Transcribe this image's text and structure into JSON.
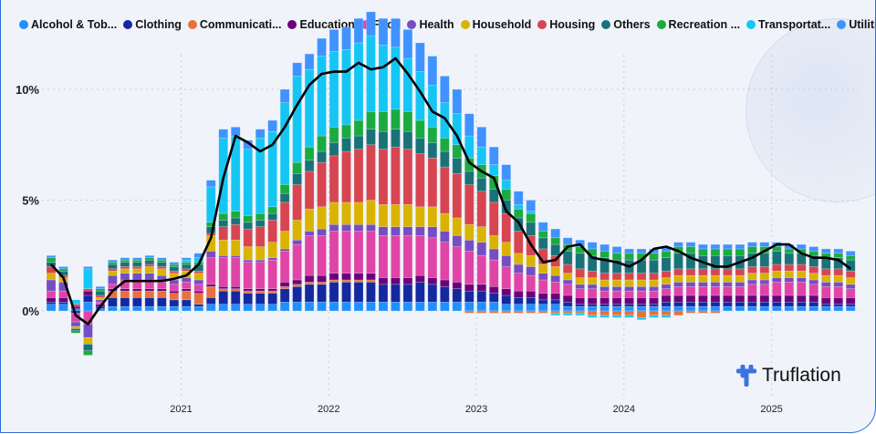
{
  "chart_data": {
    "type": "bar",
    "stacked": true,
    "title": "",
    "xlabel": "",
    "ylabel": "",
    "ylim": [
      -3,
      12
    ],
    "y_ticks": [
      "0%",
      "5%",
      "10%"
    ],
    "y_tick_values": [
      0,
      5,
      10
    ],
    "x_ticks": [
      "2021",
      "2022",
      "2023",
      "2024",
      "2025"
    ],
    "start_month": "2020-02",
    "n_months": 66,
    "legend_position": "top",
    "series": [
      {
        "name": "Alcohol & Tob...",
        "color": "#1E90FF",
        "values": [
          0.3,
          0.3,
          0.1,
          0.4,
          0.1,
          0.2,
          0.2,
          0.2,
          0.2,
          0.2,
          0.2,
          0.2,
          0.2,
          0.3,
          0.3,
          0.3,
          0.3,
          0.3,
          0.3,
          0.4,
          0.4,
          0.4,
          0.4,
          0.4,
          0.4,
          0.4,
          0.4,
          0.4,
          0.4,
          0.4,
          0.4,
          0.4,
          0.4,
          0.4,
          0.4,
          0.4,
          0.4,
          0.3,
          0.3,
          0.3,
          0.3,
          0.3,
          0.2,
          0.2,
          0.2,
          0.2,
          0.2,
          0.2,
          0.2,
          0.2,
          0.2,
          0.2,
          0.2,
          0.2,
          0.2,
          0.2,
          0.2,
          0.2,
          0.2,
          0.2,
          0.2,
          0.2,
          0.2,
          0.2,
          0.2,
          0.2
        ]
      },
      {
        "name": "Clothing",
        "color": "#1428A0",
        "values": [
          0.1,
          0.1,
          -0.1,
          0.3,
          0.1,
          0.4,
          0.4,
          0.4,
          0.4,
          0.4,
          0.3,
          0.3,
          0.1,
          0.3,
          0.6,
          0.6,
          0.5,
          0.5,
          0.5,
          0.6,
          0.7,
          0.8,
          0.8,
          0.9,
          0.9,
          0.9,
          0.9,
          0.8,
          0.8,
          0.8,
          0.9,
          0.8,
          0.7,
          0.6,
          0.5,
          0.5,
          0.4,
          0.4,
          0.3,
          0.3,
          0.2,
          0.2,
          0.2,
          0.1,
          0.1,
          0.1,
          0.1,
          0.1,
          0.1,
          0.1,
          0.2,
          0.2,
          0.2,
          0.2,
          0.2,
          0.2,
          0.2,
          0.2,
          0.2,
          0.2,
          0.2,
          0.2,
          0.2,
          0.1,
          0.1,
          0.1
        ]
      },
      {
        "name": "Communicati...",
        "color": "#E8703A",
        "values": [
          0,
          0,
          0,
          0,
          0,
          0.3,
          0.3,
          0.3,
          0.3,
          0.3,
          0.3,
          0.4,
          0.5,
          0.5,
          0.1,
          0.1,
          0.1,
          0.1,
          0.1,
          0.1,
          0.1,
          0.1,
          0.1,
          0.1,
          0.1,
          0.1,
          0.1,
          0,
          0,
          0,
          0,
          0,
          0,
          0,
          -0.1,
          -0.1,
          -0.1,
          -0.1,
          -0.1,
          -0.1,
          -0.1,
          -0.1,
          -0.1,
          -0.1,
          -0.2,
          -0.2,
          -0.2,
          -0.2,
          -0.3,
          -0.2,
          -0.2,
          -0.2,
          -0.1,
          -0.1,
          -0.1,
          0,
          0,
          0,
          0,
          0,
          0,
          0,
          0,
          0,
          0,
          0
        ]
      },
      {
        "name": "Education",
        "color": "#6B007B",
        "values": [
          0.2,
          0.2,
          0.1,
          0.2,
          0.1,
          0.1,
          0.1,
          0.1,
          0.1,
          0.1,
          0.1,
          0.1,
          0.1,
          0.1,
          0.1,
          0.1,
          0.1,
          0.1,
          0.1,
          0.2,
          0.2,
          0.3,
          0.3,
          0.3,
          0.3,
          0.3,
          0.3,
          0.3,
          0.3,
          0.3,
          0.3,
          0.3,
          0.3,
          0.3,
          0.3,
          0.3,
          0.3,
          0.3,
          0.3,
          0.3,
          0.3,
          0.3,
          0.3,
          0.3,
          0.3,
          0.3,
          0.3,
          0.3,
          0.3,
          0.3,
          0.3,
          0.3,
          0.3,
          0.3,
          0.3,
          0.3,
          0.3,
          0.3,
          0.3,
          0.3,
          0.3,
          0.3,
          0.3,
          0.3,
          0.3,
          0.3
        ]
      },
      {
        "name": "Food",
        "color": "#E044A7",
        "values": [
          0.3,
          0.3,
          -0.4,
          -0.6,
          0.1,
          0.2,
          0.4,
          0.4,
          0.4,
          0.3,
          0.3,
          0.3,
          0.3,
          1.2,
          1.3,
          1.3,
          1.2,
          1.2,
          1.3,
          1.4,
          1.6,
          1.8,
          1.8,
          1.9,
          1.9,
          1.9,
          1.9,
          1.9,
          1.9,
          1.9,
          1.8,
          1.8,
          1.7,
          1.6,
          1.5,
          1.3,
          1.2,
          1.0,
          0.8,
          0.7,
          0.6,
          0.5,
          0.5,
          0.4,
          0.4,
          0.3,
          0.3,
          0.3,
          0.3,
          0.3,
          0.3,
          0.4,
          0.4,
          0.4,
          0.4,
          0.4,
          0.4,
          0.5,
          0.5,
          0.6,
          0.6,
          0.6,
          0.5,
          0.5,
          0.5,
          0.4
        ]
      },
      {
        "name": "Health",
        "color": "#744EC2",
        "values": [
          0.5,
          0.4,
          -0.2,
          -0.6,
          0.1,
          0.4,
          0.3,
          0.3,
          0.3,
          0.3,
          0.2,
          0.2,
          0.2,
          0.3,
          0.1,
          0.1,
          0.1,
          0.1,
          0.1,
          0.1,
          0.2,
          0.2,
          0.3,
          0.3,
          0.3,
          0.3,
          0.3,
          0.4,
          0.4,
          0.4,
          0.4,
          0.5,
          0.5,
          0.5,
          0.5,
          0.6,
          0.5,
          0.5,
          0.4,
          0.4,
          0.3,
          0.3,
          0.2,
          0.2,
          0.2,
          0.2,
          0.2,
          0.2,
          0.2,
          0.2,
          0.2,
          0.2,
          0.2,
          0.2,
          0.2,
          0.2,
          0.2,
          0.2,
          0.2,
          0.2,
          0.2,
          0.2,
          0.2,
          0.2,
          0.2,
          0.2
        ]
      },
      {
        "name": "Household",
        "color": "#D9B300",
        "values": [
          0.3,
          0.2,
          -0.1,
          -0.3,
          0.1,
          0.2,
          0.2,
          0.2,
          0.3,
          0.3,
          0.3,
          0.3,
          0.3,
          0.7,
          0.7,
          0.7,
          0.6,
          0.6,
          0.7,
          0.8,
          0.9,
          1.0,
          1.0,
          1.0,
          1.0,
          1.0,
          1.1,
          1.0,
          1.0,
          1.0,
          0.9,
          0.9,
          0.8,
          0.8,
          0.7,
          0.7,
          0.6,
          0.6,
          0.5,
          0.5,
          0.4,
          0.4,
          0.3,
          0.3,
          0.3,
          0.3,
          0.3,
          0.3,
          0.3,
          0.3,
          0.3,
          0.3,
          0.3,
          0.3,
          0.3,
          0.3,
          0.3,
          0.3,
          0.3,
          0.3,
          0.3,
          0.3,
          0.3,
          0.3,
          0.3,
          0.3
        ]
      },
      {
        "name": "Housing",
        "color": "#D64550",
        "values": [
          0.3,
          0.1,
          0.1,
          0.1,
          0.1,
          0.1,
          0.1,
          0.1,
          0.1,
          0.1,
          0.1,
          0.1,
          0.1,
          0.1,
          0.6,
          0.7,
          0.8,
          0.9,
          1.0,
          1.3,
          1.6,
          1.7,
          2.0,
          2.1,
          2.3,
          2.4,
          2.5,
          2.5,
          2.6,
          2.5,
          2.4,
          2.2,
          2.1,
          2.0,
          1.8,
          1.6,
          1.5,
          1.3,
          1.0,
          0.9,
          0.7,
          0.5,
          0.4,
          0.4,
          0.3,
          0.3,
          0.3,
          0.3,
          0.3,
          0.3,
          0.3,
          0.3,
          0.3,
          0.3,
          0.3,
          0.3,
          0.3,
          0.3,
          0.3,
          0.3,
          0.3,
          0.3,
          0.3,
          0.3,
          0.3,
          0.3
        ]
      },
      {
        "name": "Others",
        "color": "#197278",
        "values": [
          0.2,
          0.2,
          -0.1,
          -0.3,
          0.2,
          0.2,
          0.2,
          0.2,
          0.2,
          0.2,
          0.2,
          0.2,
          0.3,
          0.3,
          0.3,
          0.3,
          0.3,
          0.3,
          0.3,
          0.4,
          0.5,
          0.5,
          0.5,
          0.6,
          0.6,
          0.6,
          0.7,
          0.8,
          0.8,
          0.8,
          0.7,
          0.7,
          0.7,
          0.7,
          0.6,
          0.6,
          0.6,
          0.6,
          0.6,
          0.6,
          0.5,
          0.5,
          0.6,
          0.7,
          0.7,
          0.7,
          0.6,
          0.6,
          0.6,
          0.6,
          0.6,
          0.7,
          0.7,
          0.6,
          0.6,
          0.6,
          0.6,
          0.6,
          0.6,
          0.6,
          0.5,
          0.5,
          0.5,
          0.5,
          0.5,
          0.5
        ]
      },
      {
        "name": "Recreation ...",
        "color": "#1AAB40",
        "values": [
          0.2,
          0.1,
          -0.1,
          -0.2,
          0.1,
          0.1,
          0.1,
          0.1,
          0.1,
          0.1,
          0.1,
          0.1,
          0.1,
          0.2,
          0.3,
          0.3,
          0.3,
          0.3,
          0.3,
          0.4,
          0.5,
          0.6,
          0.7,
          0.7,
          0.6,
          0.7,
          0.8,
          0.9,
          0.9,
          0.9,
          0.8,
          0.7,
          0.6,
          0.6,
          0.6,
          0.6,
          0.6,
          0.5,
          0.4,
          0.4,
          0.3,
          0.3,
          0.3,
          0.3,
          0.3,
          0.3,
          0.3,
          0.3,
          0.3,
          0.3,
          0.3,
          0.3,
          0.3,
          0.3,
          0.3,
          0.3,
          0.3,
          0.3,
          0.3,
          0.2,
          0.2,
          0.2,
          0.2,
          0.2,
          0.2,
          0.2
        ]
      },
      {
        "name": "Transportat...",
        "color": "#15C6F4",
        "values": [
          0,
          0,
          0.2,
          0.9,
          0,
          0,
          0,
          0,
          0,
          0,
          0,
          0.1,
          0.2,
          1.6,
          3.4,
          3.4,
          3.0,
          3.4,
          3.4,
          3.7,
          3.9,
          3.5,
          3.6,
          3.4,
          3.4,
          3.5,
          3.4,
          3.0,
          2.8,
          2.4,
          2.2,
          1.9,
          1.6,
          1.4,
          1.0,
          0.8,
          0.5,
          0.4,
          0.2,
          0.1,
          0,
          -0.1,
          -0.1,
          -0.1,
          -0.1,
          -0.1,
          -0.1,
          -0.1,
          -0.1,
          -0.1,
          -0.1,
          0,
          0,
          0,
          0,
          0,
          0,
          0,
          0,
          0,
          0,
          0,
          0,
          0,
          0,
          0
        ]
      },
      {
        "name": "Utilities",
        "color": "#4092FF",
        "values": [
          0.1,
          0.1,
          0,
          0.1,
          0.1,
          0.1,
          0.1,
          0.1,
          0.1,
          0.1,
          0.1,
          0.1,
          0.2,
          0.3,
          0.4,
          0.4,
          0.4,
          0.4,
          0.5,
          0.6,
          0.6,
          0.7,
          0.8,
          1.0,
          1.0,
          1.1,
          1.1,
          1.2,
          1.3,
          1.3,
          1.3,
          1.3,
          1.2,
          1.1,
          1.0,
          0.9,
          0.8,
          0.7,
          0.6,
          0.5,
          0.4,
          0.4,
          0.3,
          0.3,
          0.3,
          0.3,
          0.3,
          0.2,
          0.2,
          0.2,
          0.2,
          0.2,
          0.2,
          0.2,
          0.2,
          0.2,
          0.2,
          0.2,
          0.2,
          0.2,
          0.2,
          0.2,
          0.2,
          0.2,
          0.2,
          0.2
        ]
      }
    ],
    "total": {
      "name": "TOTAL",
      "color": "#000000",
      "type": "line",
      "values": [
        2.1,
        1.5,
        -0.2,
        -0.6,
        0.2,
        0.9,
        1.35,
        1.35,
        1.35,
        1.35,
        1.45,
        1.6,
        2.1,
        3.3,
        6.0,
        7.9,
        7.6,
        7.2,
        7.5,
        8.3,
        9.3,
        10.2,
        10.7,
        10.8,
        10.8,
        11.2,
        10.9,
        11.0,
        11.4,
        10.7,
        9.9,
        9.0,
        8.7,
        7.9,
        6.7,
        6.3,
        6.0,
        4.5,
        4.0,
        3.0,
        2.2,
        2.3,
        2.9,
        3.0,
        2.4,
        2.3,
        2.2,
        2.0,
        2.3,
        2.8,
        2.9,
        2.7,
        2.4,
        2.2,
        2.0,
        2.0,
        2.2,
        2.4,
        2.7,
        3.0,
        3.0,
        2.6,
        2.4,
        2.4,
        2.3,
        1.9
      ]
    }
  },
  "brand": {
    "name": "Truflation"
  }
}
